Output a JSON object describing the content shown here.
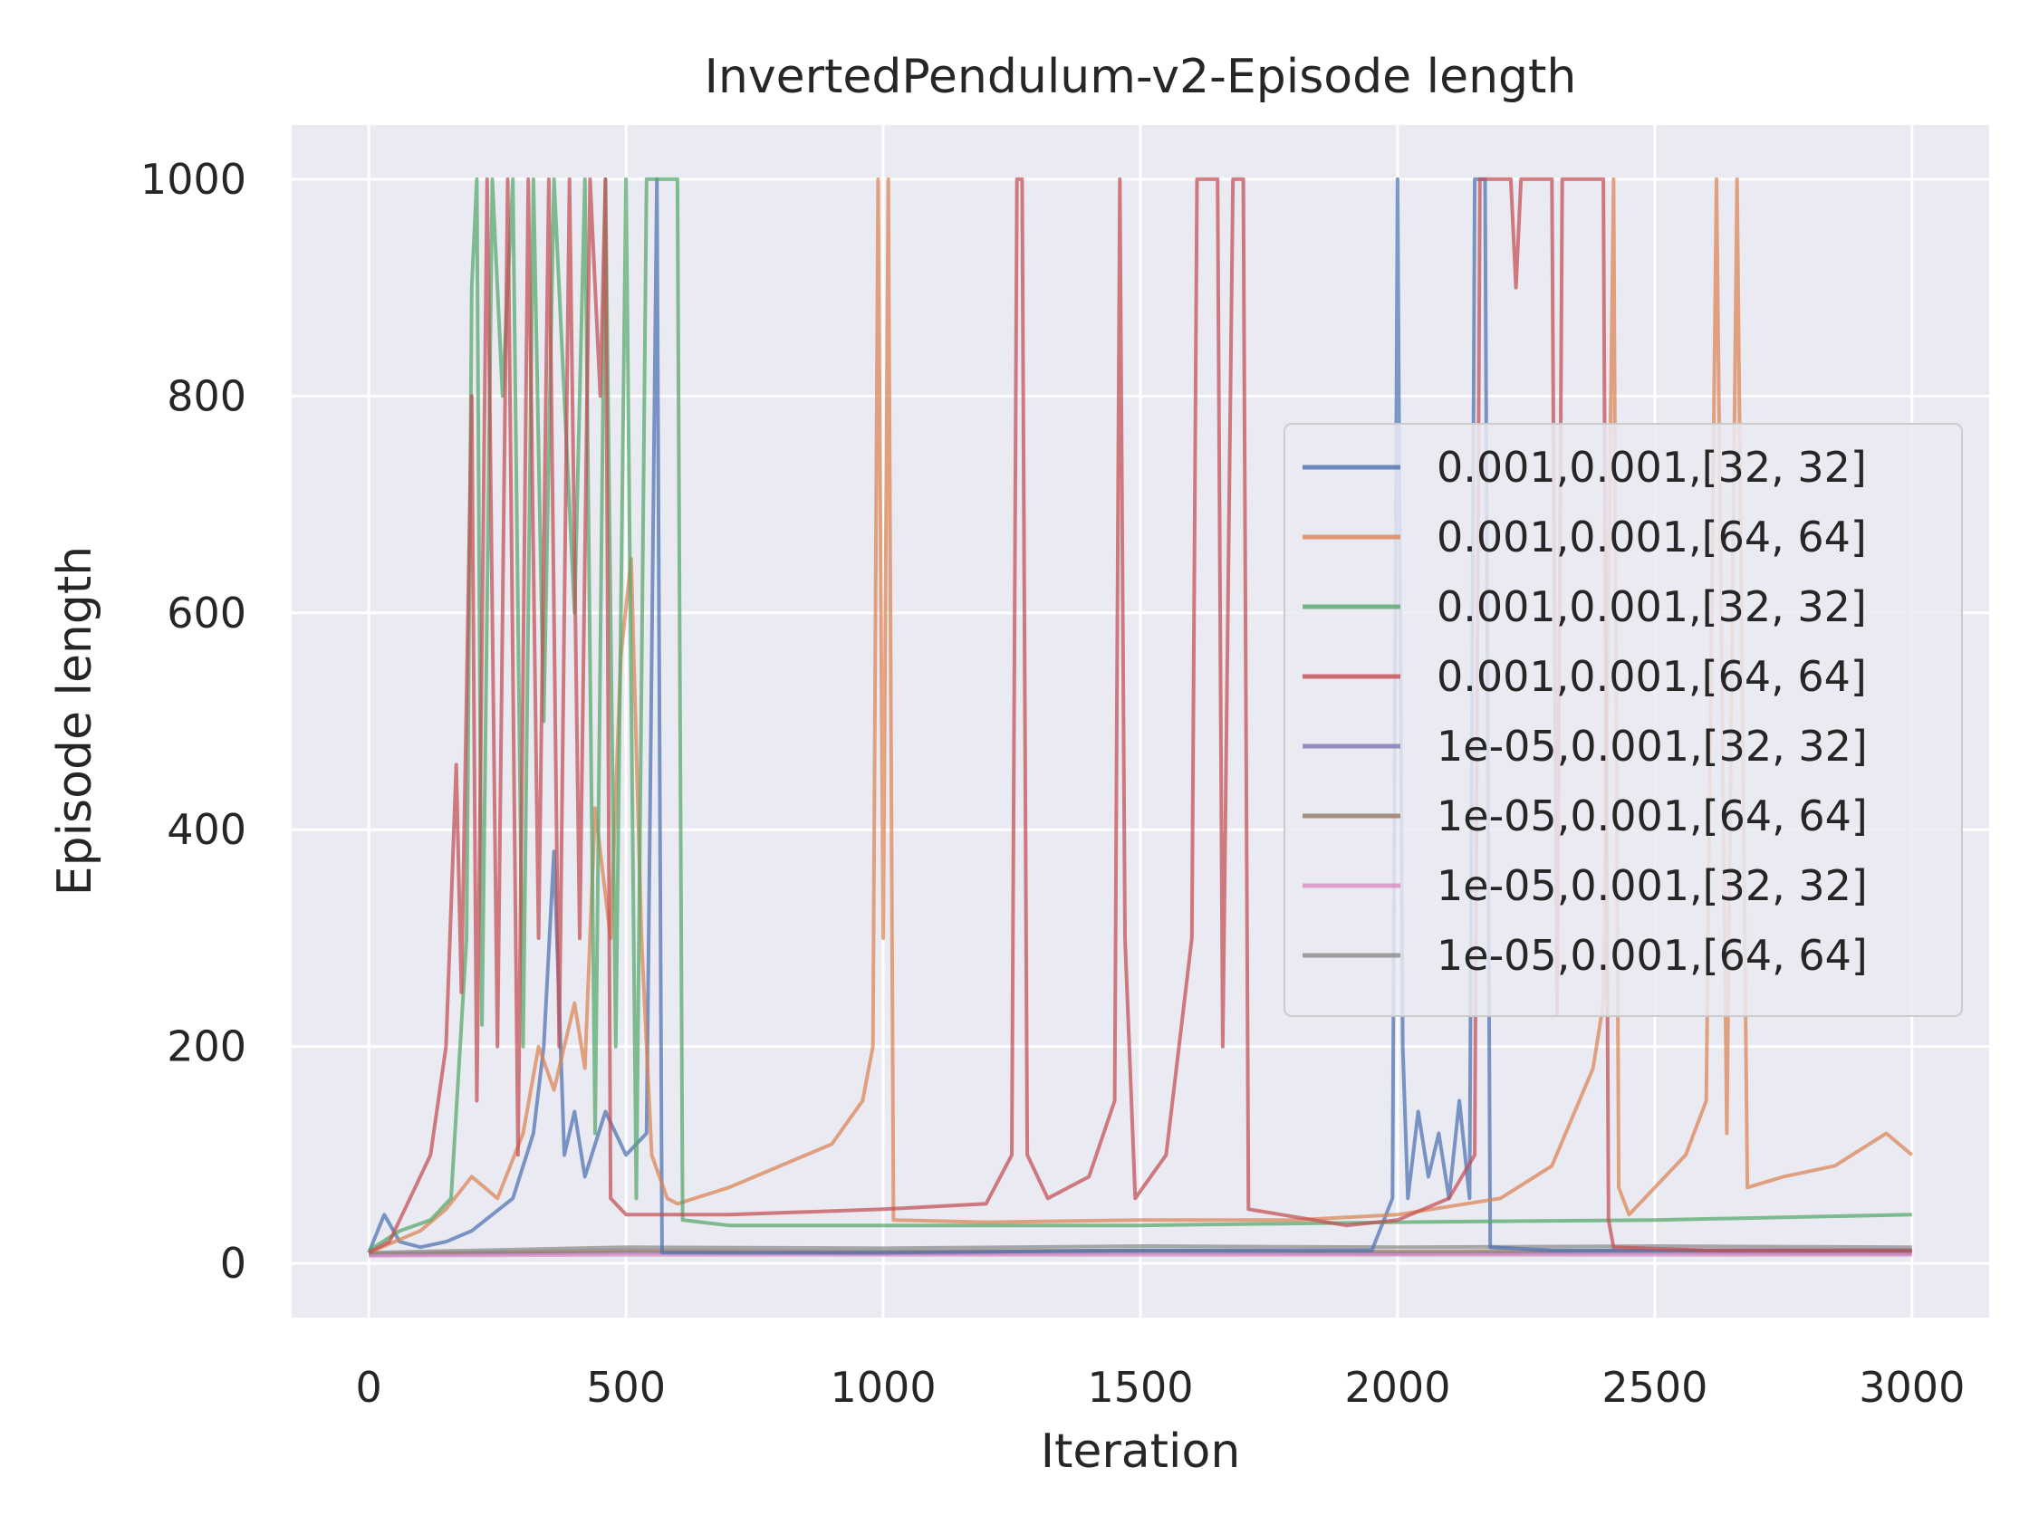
{
  "chart_data": {
    "type": "line",
    "title": "InvertedPendulum-v2-Episode length",
    "xlabel": "Iteration",
    "ylabel": "Episode length",
    "xlim": [
      -150,
      3150
    ],
    "ylim": [
      -50,
      1050
    ],
    "xticks": [
      0,
      500,
      1000,
      1500,
      2000,
      2500,
      3000
    ],
    "yticks": [
      0,
      200,
      400,
      600,
      800,
      1000
    ],
    "grid": true,
    "legend_position": "center-right",
    "series": [
      {
        "name": "0.001,0.001,[32, 32]",
        "color": "#4c72b0",
        "points": [
          [
            0,
            10
          ],
          [
            30,
            45
          ],
          [
            60,
            20
          ],
          [
            100,
            15
          ],
          [
            150,
            20
          ],
          [
            200,
            30
          ],
          [
            280,
            60
          ],
          [
            320,
            120
          ],
          [
            340,
            200
          ],
          [
            360,
            380
          ],
          [
            380,
            100
          ],
          [
            400,
            140
          ],
          [
            420,
            80
          ],
          [
            460,
            140
          ],
          [
            500,
            100
          ],
          [
            540,
            120
          ],
          [
            560,
            1000
          ],
          [
            570,
            10
          ],
          [
            700,
            10
          ],
          [
            1000,
            10
          ],
          [
            1500,
            12
          ],
          [
            1950,
            12
          ],
          [
            1990,
            60
          ],
          [
            2000,
            1000
          ],
          [
            2010,
            200
          ],
          [
            2020,
            60
          ],
          [
            2040,
            140
          ],
          [
            2060,
            80
          ],
          [
            2080,
            120
          ],
          [
            2100,
            60
          ],
          [
            2120,
            150
          ],
          [
            2140,
            60
          ],
          [
            2150,
            1000
          ],
          [
            2170,
            1000
          ],
          [
            2180,
            15
          ],
          [
            2300,
            12
          ],
          [
            2600,
            12
          ],
          [
            3000,
            12
          ]
        ]
      },
      {
        "name": "0.001,0.001,[64, 64]",
        "color": "#dd8452",
        "points": [
          [
            0,
            10
          ],
          [
            50,
            20
          ],
          [
            100,
            30
          ],
          [
            150,
            50
          ],
          [
            200,
            80
          ],
          [
            250,
            60
          ],
          [
            300,
            120
          ],
          [
            330,
            200
          ],
          [
            360,
            160
          ],
          [
            400,
            240
          ],
          [
            420,
            180
          ],
          [
            440,
            420
          ],
          [
            470,
            300
          ],
          [
            490,
            560
          ],
          [
            510,
            650
          ],
          [
            530,
            300
          ],
          [
            550,
            100
          ],
          [
            580,
            60
          ],
          [
            600,
            55
          ],
          [
            700,
            70
          ],
          [
            800,
            90
          ],
          [
            900,
            110
          ],
          [
            960,
            150
          ],
          [
            980,
            200
          ],
          [
            990,
            1000
          ],
          [
            1000,
            300
          ],
          [
            1010,
            1000
          ],
          [
            1020,
            40
          ],
          [
            1200,
            38
          ],
          [
            1500,
            40
          ],
          [
            1800,
            40
          ],
          [
            2000,
            45
          ],
          [
            2200,
            60
          ],
          [
            2300,
            90
          ],
          [
            2380,
            180
          ],
          [
            2400,
            240
          ],
          [
            2420,
            1000
          ],
          [
            2430,
            70
          ],
          [
            2450,
            45
          ],
          [
            2500,
            70
          ],
          [
            2560,
            100
          ],
          [
            2600,
            150
          ],
          [
            2620,
            1000
          ],
          [
            2640,
            120
          ],
          [
            2660,
            1000
          ],
          [
            2680,
            70
          ],
          [
            2750,
            80
          ],
          [
            2850,
            90
          ],
          [
            2950,
            120
          ],
          [
            3000,
            100
          ]
        ]
      },
      {
        "name": "0.001,0.001,[32, 32]",
        "color": "#55a868",
        "points": [
          [
            0,
            12
          ],
          [
            60,
            30
          ],
          [
            120,
            40
          ],
          [
            160,
            60
          ],
          [
            190,
            300
          ],
          [
            200,
            900
          ],
          [
            210,
            1000
          ],
          [
            220,
            220
          ],
          [
            240,
            1000
          ],
          [
            260,
            800
          ],
          [
            280,
            1000
          ],
          [
            300,
            200
          ],
          [
            320,
            1000
          ],
          [
            340,
            500
          ],
          [
            360,
            1000
          ],
          [
            400,
            600
          ],
          [
            420,
            1000
          ],
          [
            440,
            120
          ],
          [
            460,
            1000
          ],
          [
            480,
            200
          ],
          [
            500,
            1000
          ],
          [
            520,
            60
          ],
          [
            540,
            1000
          ],
          [
            560,
            1000
          ],
          [
            580,
            1000
          ],
          [
            600,
            1000
          ],
          [
            610,
            40
          ],
          [
            700,
            35
          ],
          [
            1000,
            35
          ],
          [
            1500,
            35
          ],
          [
            2000,
            38
          ],
          [
            2500,
            40
          ],
          [
            3000,
            45
          ]
        ]
      },
      {
        "name": "0.001,0.001,[64, 64]",
        "color": "#c44e52",
        "points": [
          [
            0,
            10
          ],
          [
            40,
            20
          ],
          [
            80,
            60
          ],
          [
            120,
            100
          ],
          [
            150,
            200
          ],
          [
            170,
            460
          ],
          [
            180,
            250
          ],
          [
            200,
            800
          ],
          [
            210,
            150
          ],
          [
            230,
            1000
          ],
          [
            250,
            200
          ],
          [
            270,
            1000
          ],
          [
            290,
            100
          ],
          [
            310,
            1000
          ],
          [
            330,
            300
          ],
          [
            350,
            1000
          ],
          [
            370,
            200
          ],
          [
            390,
            1000
          ],
          [
            410,
            300
          ],
          [
            430,
            1000
          ],
          [
            450,
            800
          ],
          [
            460,
            1000
          ],
          [
            470,
            60
          ],
          [
            500,
            45
          ],
          [
            700,
            45
          ],
          [
            1000,
            50
          ],
          [
            1200,
            55
          ],
          [
            1250,
            100
          ],
          [
            1260,
            1000
          ],
          [
            1270,
            1000
          ],
          [
            1280,
            100
          ],
          [
            1320,
            60
          ],
          [
            1400,
            80
          ],
          [
            1450,
            150
          ],
          [
            1460,
            1000
          ],
          [
            1470,
            300
          ],
          [
            1490,
            60
          ],
          [
            1550,
            100
          ],
          [
            1600,
            300
          ],
          [
            1610,
            1000
          ],
          [
            1630,
            1000
          ],
          [
            1650,
            1000
          ],
          [
            1660,
            200
          ],
          [
            1680,
            1000
          ],
          [
            1700,
            1000
          ],
          [
            1710,
            50
          ],
          [
            1900,
            35
          ],
          [
            2000,
            40
          ],
          [
            2100,
            60
          ],
          [
            2150,
            100
          ],
          [
            2160,
            1000
          ],
          [
            2220,
            1000
          ],
          [
            2230,
            900
          ],
          [
            2240,
            1000
          ],
          [
            2300,
            1000
          ],
          [
            2310,
            230
          ],
          [
            2320,
            1000
          ],
          [
            2400,
            1000
          ],
          [
            2410,
            40
          ],
          [
            2420,
            15
          ],
          [
            2600,
            12
          ],
          [
            3000,
            12
          ]
        ]
      },
      {
        "name": "1e-05,0.001,[32, 32]",
        "color": "#8172b3",
        "points": [
          [
            0,
            8
          ],
          [
            500,
            10
          ],
          [
            1000,
            9
          ],
          [
            1500,
            10
          ],
          [
            2000,
            9
          ],
          [
            2500,
            10
          ],
          [
            3000,
            9
          ]
        ]
      },
      {
        "name": "1e-05,0.001,[64, 64]",
        "color": "#937860",
        "points": [
          [
            0,
            9
          ],
          [
            500,
            12
          ],
          [
            1000,
            11
          ],
          [
            1500,
            12
          ],
          [
            2000,
            11
          ],
          [
            2500,
            12
          ],
          [
            3000,
            11
          ]
        ]
      },
      {
        "name": "1e-05,0.001,[32, 32]",
        "color": "#da8bc3",
        "points": [
          [
            0,
            7
          ],
          [
            500,
            8
          ],
          [
            1000,
            8
          ],
          [
            1500,
            8
          ],
          [
            2000,
            8
          ],
          [
            2500,
            8
          ],
          [
            3000,
            8
          ]
        ]
      },
      {
        "name": "1e-05,0.001,[64, 64]",
        "color": "#8c8c8c",
        "points": [
          [
            0,
            10
          ],
          [
            500,
            15
          ],
          [
            1000,
            14
          ],
          [
            1500,
            16
          ],
          [
            2000,
            15
          ],
          [
            2500,
            16
          ],
          [
            3000,
            15
          ]
        ]
      }
    ]
  }
}
